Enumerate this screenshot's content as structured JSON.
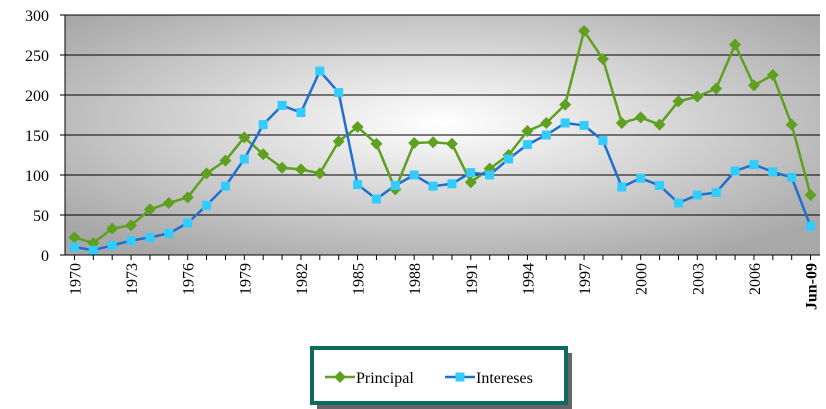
{
  "chart_data": {
    "type": "line",
    "categories": [
      "1970",
      null,
      null,
      "1973",
      null,
      null,
      "1976",
      null,
      null,
      "1979",
      null,
      null,
      "1982",
      null,
      null,
      "1985",
      null,
      null,
      "1988",
      null,
      null,
      "1991",
      null,
      null,
      "1994",
      null,
      null,
      "1997",
      null,
      null,
      "2000",
      null,
      null,
      "2003",
      null,
      null,
      "2006",
      null,
      null,
      "Jun-09"
    ],
    "series": [
      {
        "name": "Principal",
        "color": "#5fa020",
        "marker": "diamond",
        "values": [
          22,
          15,
          33,
          37,
          57,
          65,
          72,
          102,
          118,
          147,
          126,
          109,
          107,
          102,
          142,
          160,
          139,
          82,
          140,
          141,
          139,
          91,
          108,
          125,
          155,
          165,
          188,
          280,
          245,
          165,
          172,
          163,
          192,
          198,
          208,
          263,
          212,
          225,
          163,
          75
        ]
      },
      {
        "name": "Intereses",
        "color": "#1f6fd0",
        "marker_color": "#33ccff",
        "marker": "square",
        "values": [
          10,
          6,
          12,
          18,
          22,
          27,
          40,
          62,
          86,
          120,
          163,
          187,
          178,
          230,
          203,
          88,
          70,
          87,
          100,
          86,
          89,
          103,
          100,
          120,
          138,
          150,
          165,
          162,
          143,
          85,
          96,
          87,
          65,
          75,
          78,
          105,
          113,
          104,
          97,
          36
        ]
      }
    ],
    "ylim": [
      0,
      300
    ],
    "yticks": [
      0,
      50,
      100,
      150,
      200,
      250,
      300
    ],
    "grid": true,
    "legend": "bottom"
  }
}
